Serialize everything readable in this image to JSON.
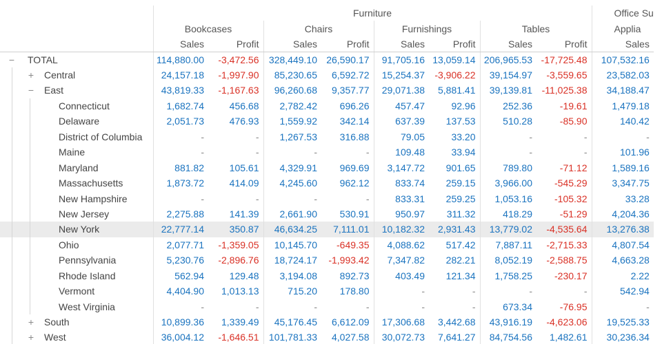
{
  "column_groups": [
    {
      "name": "Furniture",
      "subgroups": [
        "Bookcases",
        "Chairs",
        "Furnishings",
        "Tables"
      ]
    },
    {
      "name": "Office Su",
      "subgroups": [
        "Applia"
      ]
    }
  ],
  "measures": [
    "Sales",
    "Profit"
  ],
  "rows": [
    {
      "label": "TOTAL",
      "level": 0,
      "toggle": "−",
      "values": [
        "114,880.00",
        "-3,472.56",
        "328,449.10",
        "26,590.17",
        "91,705.16",
        "13,059.14",
        "206,965.53",
        "-17,725.48",
        "107,532.16"
      ]
    },
    {
      "label": "Central",
      "level": 1,
      "toggle": "+",
      "values": [
        "24,157.18",
        "-1,997.90",
        "85,230.65",
        "6,592.72",
        "15,254.37",
        "-3,906.22",
        "39,154.97",
        "-3,559.65",
        "23,582.03"
      ]
    },
    {
      "label": "East",
      "level": 1,
      "toggle": "−",
      "values": [
        "43,819.33",
        "-1,167.63",
        "96,260.68",
        "9,357.77",
        "29,071.38",
        "5,881.41",
        "39,139.81",
        "-11,025.38",
        "34,188.47"
      ]
    },
    {
      "label": "Connecticut",
      "level": 2,
      "toggle": "",
      "values": [
        "1,682.74",
        "456.68",
        "2,782.42",
        "696.26",
        "457.47",
        "92.96",
        "252.36",
        "-19.61",
        "1,479.18"
      ]
    },
    {
      "label": "Delaware",
      "level": 2,
      "toggle": "",
      "values": [
        "2,051.73",
        "476.93",
        "1,559.92",
        "342.14",
        "637.39",
        "137.53",
        "510.28",
        "-85.90",
        "140.42"
      ]
    },
    {
      "label": "District of Columbia",
      "level": 2,
      "toggle": "",
      "values": [
        "-",
        "-",
        "1,267.53",
        "316.88",
        "79.05",
        "33.20",
        "-",
        "-",
        "-"
      ]
    },
    {
      "label": "Maine",
      "level": 2,
      "toggle": "",
      "values": [
        "-",
        "-",
        "-",
        "-",
        "109.48",
        "33.94",
        "-",
        "-",
        "101.96"
      ]
    },
    {
      "label": "Maryland",
      "level": 2,
      "toggle": "",
      "values": [
        "881.82",
        "105.61",
        "4,329.91",
        "969.69",
        "3,147.72",
        "901.65",
        "789.80",
        "-71.12",
        "1,589.16"
      ]
    },
    {
      "label": "Massachusetts",
      "level": 2,
      "toggle": "",
      "values": [
        "1,873.72",
        "414.09",
        "4,245.60",
        "962.12",
        "833.74",
        "259.15",
        "3,966.00",
        "-545.29",
        "3,347.75"
      ]
    },
    {
      "label": "New Hampshire",
      "level": 2,
      "toggle": "",
      "values": [
        "-",
        "-",
        "-",
        "-",
        "833.31",
        "259.25",
        "1,053.16",
        "-105.32",
        "33.28"
      ]
    },
    {
      "label": "New Jersey",
      "level": 2,
      "toggle": "",
      "values": [
        "2,275.88",
        "141.39",
        "2,661.90",
        "530.91",
        "950.97",
        "311.32",
        "418.29",
        "-51.29",
        "4,204.36"
      ]
    },
    {
      "label": "New York",
      "level": 2,
      "toggle": "",
      "highlight": true,
      "values": [
        "22,777.14",
        "350.87",
        "46,634.25",
        "7,111.01",
        "10,182.32",
        "2,931.43",
        "13,779.02",
        "-4,535.64",
        "13,276.38"
      ]
    },
    {
      "label": "Ohio",
      "level": 2,
      "toggle": "",
      "values": [
        "2,077.71",
        "-1,359.05",
        "10,145.70",
        "-649.35",
        "4,088.62",
        "517.42",
        "7,887.11",
        "-2,715.33",
        "4,807.54"
      ]
    },
    {
      "label": "Pennsylvania",
      "level": 2,
      "toggle": "",
      "values": [
        "5,230.76",
        "-2,896.76",
        "18,724.17",
        "-1,993.42",
        "7,347.82",
        "282.21",
        "8,052.19",
        "-2,588.75",
        "4,663.28"
      ]
    },
    {
      "label": "Rhode Island",
      "level": 2,
      "toggle": "",
      "values": [
        "562.94",
        "129.48",
        "3,194.08",
        "892.73",
        "403.49",
        "121.34",
        "1,758.25",
        "-230.17",
        "2.22"
      ]
    },
    {
      "label": "Vermont",
      "level": 2,
      "toggle": "",
      "values": [
        "4,404.90",
        "1,013.13",
        "715.20",
        "178.80",
        "-",
        "-",
        "-",
        "-",
        "542.94"
      ]
    },
    {
      "label": "West Virginia",
      "level": 2,
      "toggle": "",
      "values": [
        "-",
        "-",
        "-",
        "-",
        "-",
        "-",
        "673.34",
        "-76.95",
        "-"
      ]
    },
    {
      "label": "South",
      "level": 1,
      "toggle": "+",
      "values": [
        "10,899.36",
        "1,339.49",
        "45,176.45",
        "6,612.09",
        "17,306.68",
        "3,442.68",
        "43,916.19",
        "-4,623.06",
        "19,525.33"
      ]
    },
    {
      "label": "West",
      "level": 1,
      "toggle": "+",
      "values": [
        "36,004.12",
        "-1,646.51",
        "101,781.33",
        "4,027.58",
        "30,072.73",
        "7,641.27",
        "84,754.56",
        "1,482.61",
        "30,236.34"
      ]
    }
  ],
  "colors": {
    "positive": "#1a73bf",
    "negative": "#d93025",
    "highlight_row": "#ebebeb"
  }
}
